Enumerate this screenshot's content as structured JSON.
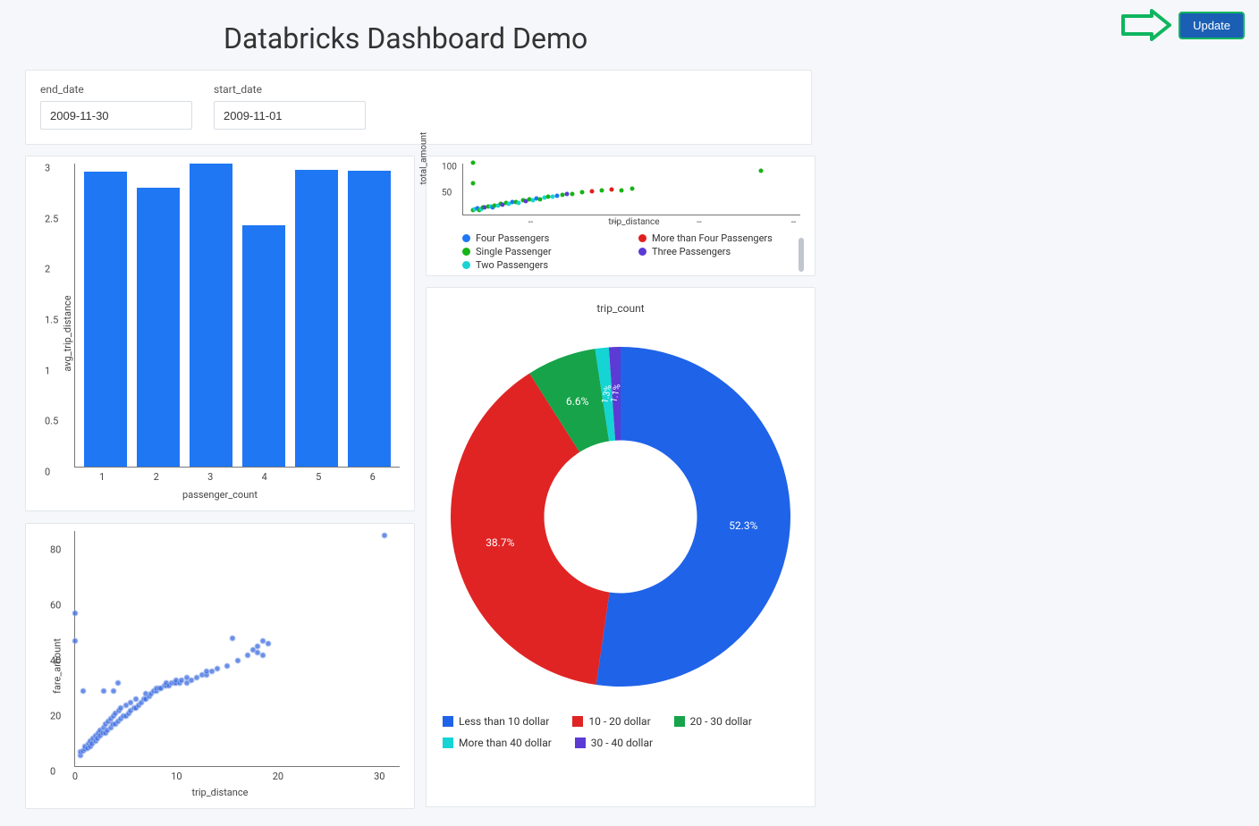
{
  "page": {
    "title": "Databricks Dashboard Demo",
    "background_color": "#f5f7fa"
  },
  "update_button": {
    "label": "Update",
    "bg_color": "#1b5fb4",
    "outline_color": "#0fb55f",
    "arrow_color": "#0fb55f"
  },
  "filters": {
    "end_date": {
      "label": "end_date",
      "value": "2009-11-30"
    },
    "start_date": {
      "label": "start_date",
      "value": "2009-11-01"
    }
  },
  "bar_chart": {
    "type": "bar",
    "ylabel": "avg_trip_distance",
    "xlabel": "passenger_count",
    "categories": [
      "1",
      "2",
      "3",
      "4",
      "5",
      "6"
    ],
    "values": [
      2.91,
      2.75,
      2.99,
      2.38,
      2.93,
      2.92
    ],
    "ylim": [
      0,
      3
    ],
    "ytick_step": 0.5,
    "bar_color": "#1f77f4",
    "axis_color": "#777777",
    "label_fontsize": 11
  },
  "scatter_top": {
    "type": "scatter",
    "ylabel": "total_amount",
    "xlabel": "trip_distance",
    "xlim": [
      0,
      34
    ],
    "ylim": [
      0,
      100
    ],
    "yticks": [
      50,
      100
    ],
    "xticks_dash": [
      "--",
      "--",
      "--",
      "--"
    ],
    "legend": [
      {
        "label": "Four Passengers",
        "color": "#1f77f4"
      },
      {
        "label": "More than Four Passengers",
        "color": "#e11e1e"
      },
      {
        "label": "Single Passenger",
        "color": "#17b317"
      },
      {
        "label": "Three Passengers",
        "color": "#5b3bd4"
      },
      {
        "label": "Two Passengers",
        "color": "#17d4d4"
      }
    ],
    "marker_size": 5,
    "points": [
      {
        "x": 1,
        "y": 8,
        "c": "#17b317"
      },
      {
        "x": 1.2,
        "y": 10,
        "c": "#17d4d4"
      },
      {
        "x": 1.4,
        "y": 12,
        "c": "#1f77f4"
      },
      {
        "x": 1.6,
        "y": 9,
        "c": "#17b317"
      },
      {
        "x": 1.8,
        "y": 11,
        "c": "#17d4d4"
      },
      {
        "x": 2,
        "y": 13,
        "c": "#17b317"
      },
      {
        "x": 2.2,
        "y": 14,
        "c": "#5b3bd4"
      },
      {
        "x": 2.5,
        "y": 15,
        "c": "#17b317"
      },
      {
        "x": 2.8,
        "y": 16,
        "c": "#17d4d4"
      },
      {
        "x": 3,
        "y": 14,
        "c": "#1f77f4"
      },
      {
        "x": 3.2,
        "y": 17,
        "c": "#17b317"
      },
      {
        "x": 3.5,
        "y": 18,
        "c": "#17d4d4"
      },
      {
        "x": 3.8,
        "y": 20,
        "c": "#17b317"
      },
      {
        "x": 4,
        "y": 19,
        "c": "#5b3bd4"
      },
      {
        "x": 4.3,
        "y": 22,
        "c": "#17b317"
      },
      {
        "x": 4.6,
        "y": 21,
        "c": "#17d4d4"
      },
      {
        "x": 5,
        "y": 24,
        "c": "#1f77f4"
      },
      {
        "x": 5.3,
        "y": 25,
        "c": "#17b317"
      },
      {
        "x": 5.6,
        "y": 23,
        "c": "#17d4d4"
      },
      {
        "x": 6,
        "y": 27,
        "c": "#17b317"
      },
      {
        "x": 6.3,
        "y": 26,
        "c": "#5b3bd4"
      },
      {
        "x": 6.7,
        "y": 29,
        "c": "#17b317"
      },
      {
        "x": 7,
        "y": 28,
        "c": "#17d4d4"
      },
      {
        "x": 7.4,
        "y": 31,
        "c": "#1f77f4"
      },
      {
        "x": 7.8,
        "y": 30,
        "c": "#17b317"
      },
      {
        "x": 8.2,
        "y": 33,
        "c": "#17d4d4"
      },
      {
        "x": 8.6,
        "y": 34,
        "c": "#17b317"
      },
      {
        "x": 9,
        "y": 35,
        "c": "#17d4d4"
      },
      {
        "x": 9.5,
        "y": 36,
        "c": "#1f77f4"
      },
      {
        "x": 10,
        "y": 38,
        "c": "#17b317"
      },
      {
        "x": 10.5,
        "y": 40,
        "c": "#5b3bd4"
      },
      {
        "x": 11,
        "y": 39,
        "c": "#17b317"
      },
      {
        "x": 12,
        "y": 43,
        "c": "#17b317"
      },
      {
        "x": 13,
        "y": 44,
        "c": "#e11e1e"
      },
      {
        "x": 14,
        "y": 46,
        "c": "#17b317"
      },
      {
        "x": 15,
        "y": 48,
        "c": "#e11e1e"
      },
      {
        "x": 16,
        "y": 47,
        "c": "#17b317"
      },
      {
        "x": 17,
        "y": 50,
        "c": "#17b317"
      },
      {
        "x": 1,
        "y": 100,
        "c": "#17b317"
      },
      {
        "x": 1,
        "y": 60,
        "c": "#17b317"
      },
      {
        "x": 30,
        "y": 85,
        "c": "#17b317"
      }
    ]
  },
  "donut_chart": {
    "type": "pie",
    "title": "trip_count",
    "inner_radius_ratio": 0.45,
    "slices": [
      {
        "label": "Less than 10 dollar",
        "value": 52.3,
        "pct_label": "52.3%",
        "color": "#1f63e8"
      },
      {
        "label": "10 - 20 dollar",
        "value": 38.7,
        "pct_label": "38.7%",
        "color": "#e02424"
      },
      {
        "label": "20 - 30 dollar",
        "value": 6.6,
        "pct_label": "6.6%",
        "color": "#17a34a"
      },
      {
        "label": "More than 40 dollar",
        "value": 1.3,
        "pct_label": "1.3%",
        "color": "#14d4d4"
      },
      {
        "label": "30 - 40 dollar",
        "value": 1.1,
        "pct_label": "1.1%",
        "color": "#5b3bd4"
      }
    ],
    "label_color": "#ffffff",
    "label_fontsize": 12,
    "legend_order": [
      {
        "label": "Less than 10 dollar",
        "color": "#1f63e8"
      },
      {
        "label": "10 - 20 dollar",
        "color": "#e02424"
      },
      {
        "label": "20 - 30 dollar",
        "color": "#17a34a"
      },
      {
        "label": "More than 40 dollar",
        "color": "#14d4d4"
      },
      {
        "label": "30 - 40 dollar",
        "color": "#5b3bd4"
      }
    ]
  },
  "scatter_big": {
    "type": "scatter",
    "ylabel": "fare_amount",
    "xlabel": "trip_distance",
    "xlim": [
      0,
      32
    ],
    "ylim": [
      0,
      85
    ],
    "yticks": [
      0,
      20,
      40,
      60,
      80
    ],
    "xticks": [
      0,
      10,
      20,
      30
    ],
    "marker_color": "#3a6ae0",
    "marker_border": "#9fb7ee",
    "marker_size": 5,
    "points": [
      {
        "x": 0,
        "y": 45
      },
      {
        "x": 0,
        "y": 55
      },
      {
        "x": 0.5,
        "y": 4
      },
      {
        "x": 0.5,
        "y": 5
      },
      {
        "x": 0.8,
        "y": 5.5
      },
      {
        "x": 1,
        "y": 6
      },
      {
        "x": 1,
        "y": 7
      },
      {
        "x": 1.2,
        "y": 6.5
      },
      {
        "x": 1.3,
        "y": 8
      },
      {
        "x": 1.5,
        "y": 7
      },
      {
        "x": 1.5,
        "y": 9
      },
      {
        "x": 1.7,
        "y": 8
      },
      {
        "x": 1.8,
        "y": 10
      },
      {
        "x": 2,
        "y": 9
      },
      {
        "x": 2,
        "y": 11
      },
      {
        "x": 2.2,
        "y": 10
      },
      {
        "x": 2.3,
        "y": 12
      },
      {
        "x": 2.5,
        "y": 11
      },
      {
        "x": 2.5,
        "y": 13
      },
      {
        "x": 2.7,
        "y": 12
      },
      {
        "x": 2.8,
        "y": 14
      },
      {
        "x": 3,
        "y": 12
      },
      {
        "x": 3,
        "y": 15
      },
      {
        "x": 3.2,
        "y": 13
      },
      {
        "x": 3.3,
        "y": 16
      },
      {
        "x": 3.5,
        "y": 14
      },
      {
        "x": 3.5,
        "y": 17
      },
      {
        "x": 3.7,
        "y": 15
      },
      {
        "x": 3.8,
        "y": 18
      },
      {
        "x": 4,
        "y": 15
      },
      {
        "x": 4,
        "y": 19
      },
      {
        "x": 4.2,
        "y": 16
      },
      {
        "x": 4.3,
        "y": 20
      },
      {
        "x": 4.5,
        "y": 17
      },
      {
        "x": 4.5,
        "y": 21
      },
      {
        "x": 4.8,
        "y": 18
      },
      {
        "x": 5,
        "y": 18
      },
      {
        "x": 5,
        "y": 22
      },
      {
        "x": 5.3,
        "y": 19
      },
      {
        "x": 5.5,
        "y": 20
      },
      {
        "x": 5.5,
        "y": 23
      },
      {
        "x": 5.8,
        "y": 21
      },
      {
        "x": 6,
        "y": 21
      },
      {
        "x": 6,
        "y": 24
      },
      {
        "x": 6.3,
        "y": 22
      },
      {
        "x": 6.5,
        "y": 23
      },
      {
        "x": 6.8,
        "y": 24
      },
      {
        "x": 7,
        "y": 24
      },
      {
        "x": 7,
        "y": 26
      },
      {
        "x": 7.3,
        "y": 25
      },
      {
        "x": 7.5,
        "y": 26
      },
      {
        "x": 7.8,
        "y": 27
      },
      {
        "x": 8,
        "y": 27
      },
      {
        "x": 8,
        "y": 28
      },
      {
        "x": 8.3,
        "y": 28
      },
      {
        "x": 8.5,
        "y": 28
      },
      {
        "x": 8.8,
        "y": 29
      },
      {
        "x": 9,
        "y": 29
      },
      {
        "x": 9,
        "y": 30
      },
      {
        "x": 9.3,
        "y": 29
      },
      {
        "x": 9.5,
        "y": 30
      },
      {
        "x": 9.8,
        "y": 30
      },
      {
        "x": 10,
        "y": 30
      },
      {
        "x": 10,
        "y": 31
      },
      {
        "x": 10.3,
        "y": 30
      },
      {
        "x": 10.5,
        "y": 31
      },
      {
        "x": 11,
        "y": 30
      },
      {
        "x": 11,
        "y": 32
      },
      {
        "x": 11.5,
        "y": 31
      },
      {
        "x": 12,
        "y": 32
      },
      {
        "x": 12.5,
        "y": 33
      },
      {
        "x": 13,
        "y": 33
      },
      {
        "x": 13,
        "y": 34
      },
      {
        "x": 13.5,
        "y": 34
      },
      {
        "x": 14,
        "y": 35
      },
      {
        "x": 15,
        "y": 36
      },
      {
        "x": 15.5,
        "y": 46
      },
      {
        "x": 16,
        "y": 38
      },
      {
        "x": 17,
        "y": 40
      },
      {
        "x": 17.5,
        "y": 42
      },
      {
        "x": 18,
        "y": 43
      },
      {
        "x": 18,
        "y": 41
      },
      {
        "x": 18.5,
        "y": 45
      },
      {
        "x": 18.5,
        "y": 40
      },
      {
        "x": 19,
        "y": 44
      },
      {
        "x": 30.5,
        "y": 83
      },
      {
        "x": 0.8,
        "y": 27
      },
      {
        "x": 2.8,
        "y": 27
      },
      {
        "x": 3.8,
        "y": 27
      },
      {
        "x": 4.2,
        "y": 30
      }
    ]
  }
}
